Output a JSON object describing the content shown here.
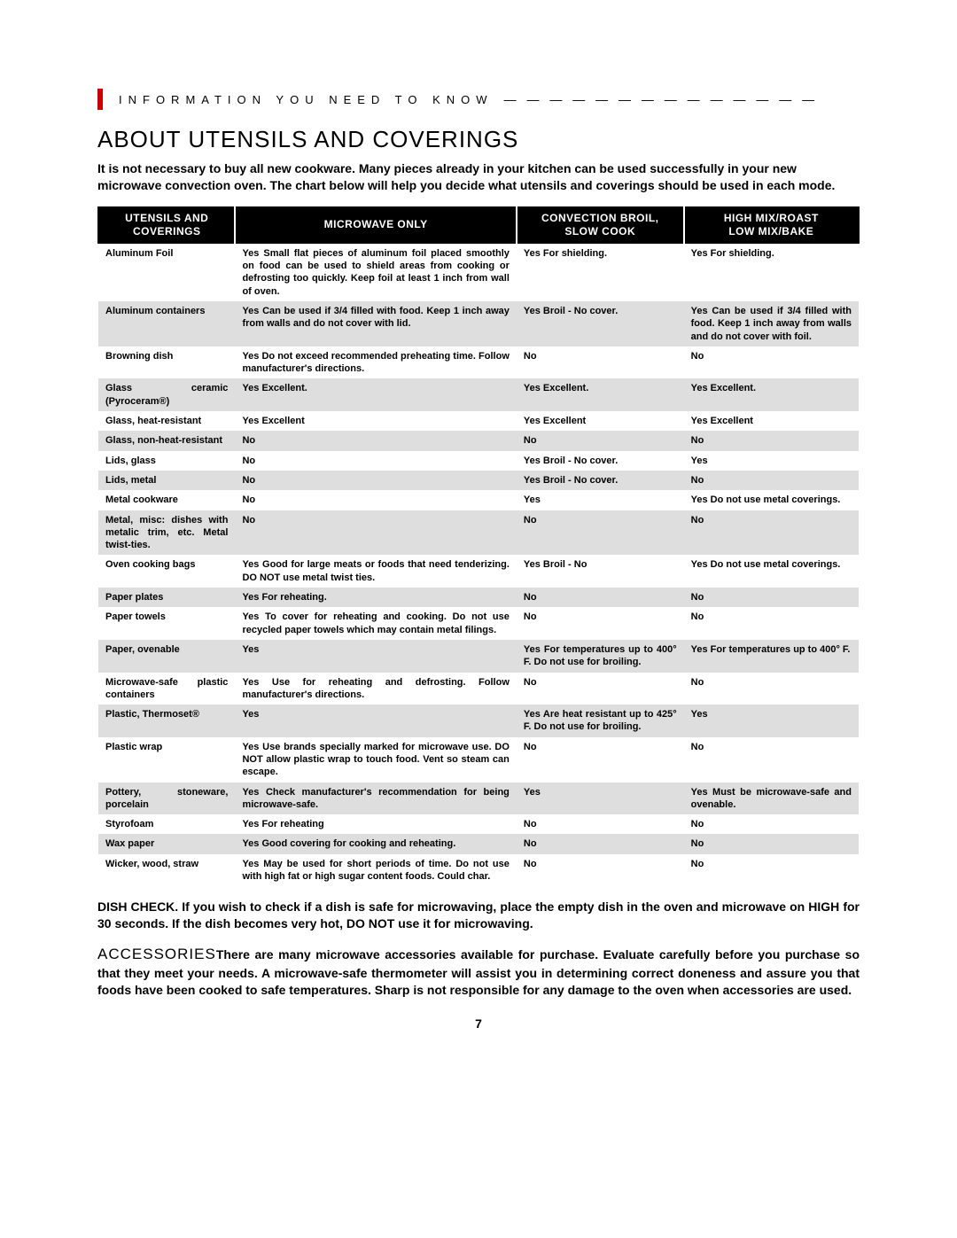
{
  "header": {
    "bar_color": "#cc0000",
    "info_text": "INFORMATION YOU NEED TO KNOW",
    "dashes": "— — — — — — — — — — — — — —"
  },
  "title": "ABOUT UTENSILS AND COVERINGS",
  "intro": "It is not necessary to buy all new cookware. Many pieces already in your kitchen can be used successfully in your new microwave convection oven. The chart below will help you decide what utensils and coverings should be used in each mode.",
  "table": {
    "headers": {
      "utensils": "Utensils and\nCoverings",
      "microwave": "Microwave Only",
      "convection": "Convection Broil,\nSlow Cook",
      "mix": "High Mix/Roast\nLow Mix/Bake"
    },
    "rows": [
      {
        "u": "Aluminum Foil",
        "m": "Yes Small flat pieces of aluminum foil placed smoothly on food can be used to shield areas from cooking or defrosting too quickly. Keep foil at least 1 inch from wall of oven.",
        "c": "Yes For shielding.",
        "h": "Yes For shielding."
      },
      {
        "u": "Aluminum containers",
        "m": "Yes Can be used if 3/4 filled with food. Keep 1 inch away from walls and do not cover with lid.",
        "c": "Yes Broil - No cover.",
        "h": "Yes Can be used if 3/4 filled with food. Keep 1 inch away from walls and do not cover with foil."
      },
      {
        "u": "Browning dish",
        "m": "Yes Do not exceed recommended preheating time. Follow manufacturer's directions.",
        "c": "No",
        "h": "No"
      },
      {
        "u": "Glass ceramic (Pyroceram®)",
        "m": "Yes Excellent.",
        "c": "Yes Excellent.",
        "h": "Yes Excellent."
      },
      {
        "u": "Glass, heat-resistant",
        "m": "Yes Excellent",
        "c": "Yes Excellent",
        "h": "Yes Excellent"
      },
      {
        "u": "Glass, non-heat-resistant",
        "m": "No",
        "c": "No",
        "h": "No"
      },
      {
        "u": "Lids, glass",
        "m": "No",
        "c": "Yes Broil - No cover.",
        "h": "Yes"
      },
      {
        "u": "Lids, metal",
        "m": "No",
        "c": "Yes Broil - No cover.",
        "h": "No"
      },
      {
        "u": "Metal cookware",
        "m": "No",
        "c": "Yes",
        "h": "Yes Do not use metal coverings."
      },
      {
        "u": "Metal, misc: dishes with metalic trim, etc. Metal twist-ties.",
        "m": "No",
        "c": "No",
        "h": "No"
      },
      {
        "u": "Oven cooking bags",
        "m": "Yes Good for large meats or foods that need tenderizing. DO NOT use metal twist ties.",
        "c": "Yes Broil - No",
        "h": "Yes Do not use metal coverings."
      },
      {
        "u": "Paper plates",
        "m": "Yes For reheating.",
        "c": "No",
        "h": "No"
      },
      {
        "u": "Paper towels",
        "m": "Yes To cover for reheating and cooking. Do not use recycled paper towels which may contain metal filings.",
        "c": "No",
        "h": "No"
      },
      {
        "u": "Paper, ovenable",
        "m": "Yes",
        "c": "Yes For temperatures up to 400° F. Do not use for broiling.",
        "h": "Yes For temperatures up to 400° F."
      },
      {
        "u": "Microwave-safe plastic containers",
        "m": "Yes Use for reheating and defrosting. Follow manufacturer's directions.",
        "c": "No",
        "h": "No"
      },
      {
        "u": "Plastic, Thermoset®",
        "m": "Yes",
        "c": "Yes Are heat resistant up to 425° F. Do not use for broiling.",
        "h": "Yes"
      },
      {
        "u": "Plastic wrap",
        "m": "Yes Use brands specially marked for microwave use. DO NOT allow plastic wrap to touch food. Vent so steam can escape.",
        "c": "No",
        "h": "No"
      },
      {
        "u": "Pottery, stoneware, porcelain",
        "m": "Yes Check manufacturer's recommendation for being microwave-safe.",
        "c": "Yes",
        "h": "Yes Must be microwave-safe and ovenable."
      },
      {
        "u": "Styrofoam",
        "m": "Yes For reheating",
        "c": "No",
        "h": "No"
      },
      {
        "u": "Wax paper",
        "m": "Yes  Good covering for cooking and reheating.",
        "c": "No",
        "h": "No"
      },
      {
        "u": "Wicker, wood, straw",
        "m": "Yes May be used for short periods of time. Do not use with high fat or high sugar content foods. Could char.",
        "c": "No",
        "h": "No"
      }
    ],
    "shade_color": "#dedede"
  },
  "dish_check": "DISH CHECK. If you wish to check if a dish is safe for microwaving, place the empty dish in the oven and microwave on HIGH for 30 seconds. If the dish becomes very hot, DO NOT use it for microwaving.",
  "accessories_label": "ACCESSORIES",
  "accessories_text": "There are many microwave accessories available for purchase. Evaluate carefully before you purchase so that they meet your needs. A microwave-safe thermometer will assist you in determining correct doneness and assure you that foods have been cooked to safe temperatures. Sharp is not responsible for any damage to the oven when accessories are used.",
  "page_number": "7"
}
